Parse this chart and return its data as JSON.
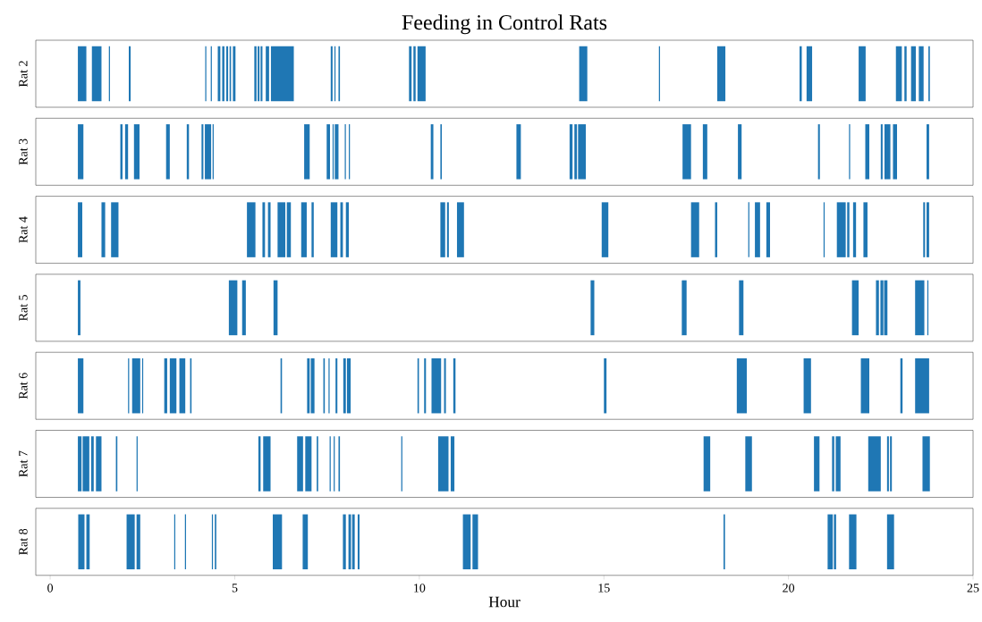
{
  "chart_data": {
    "type": "bar",
    "orientation": "horizontal",
    "title": "Feeding in Control Rats",
    "xlabel": "Hour",
    "categories": [
      "Rat 2",
      "Rat 3",
      "Rat 4",
      "Rat 5",
      "Rat 6",
      "Rat 7",
      "Rat 8"
    ],
    "xlim": [
      -0.39,
      25
    ],
    "xticks": [
      0,
      5,
      10,
      15,
      20,
      25
    ],
    "series": [
      {
        "color": "#1f77b4",
        "base": [
          0.75,
          0.75,
          0.75,
          0.75,
          0.75,
          0.75,
          0.76
        ],
        "values": [
          0.23,
          0.15,
          0.12,
          0.07,
          0.15,
          0.1,
          0.17
        ]
      },
      {
        "color": "#1f77b4",
        "base": [
          1.13,
          1.9,
          1.39,
          4.84,
          2.11,
          0.88,
          0.98
        ],
        "values": [
          0.26,
          0.06,
          0.1,
          0.23,
          0.03,
          0.18,
          0.09
        ]
      },
      {
        "color": "#1f77b4",
        "base": [
          1.59,
          2.03,
          1.65,
          5.2,
          2.22,
          1.11,
          2.07
        ],
        "values": [
          0.03,
          0.08,
          0.2,
          0.1,
          0.22,
          0.07,
          0.22
        ]
      },
      {
        "color": "#1f77b4",
        "base": [
          2.13,
          2.27,
          5.33,
          6.05,
          2.49,
          1.24,
          2.34
        ],
        "values": [
          0.05,
          0.15,
          0.23,
          0.11,
          0.03,
          0.15,
          0.1
        ]
      },
      {
        "color": "#1f77b4",
        "base": [
          4.2,
          3.14,
          5.75,
          14.64,
          3.09,
          1.78,
          3.36
        ],
        "values": [
          0.03,
          0.1,
          0.07,
          0.1,
          0.08,
          0.04,
          0.03
        ]
      },
      {
        "color": "#1f77b4",
        "base": [
          4.35,
          3.7,
          5.9,
          17.11,
          3.24,
          2.34,
          3.65
        ],
        "values": [
          0.03,
          0.06,
          0.07,
          0.13,
          0.18,
          0.03,
          0.03
        ]
      },
      {
        "color": "#1f77b4",
        "base": [
          4.54,
          4.1,
          6.16,
          18.66,
          3.5,
          5.64,
          4.38
        ],
        "values": [
          0.07,
          0.05,
          0.21,
          0.12,
          0.16,
          0.06,
          0.03
        ]
      },
      {
        "color": "#1f77b4",
        "base": [
          4.66,
          4.19,
          6.41,
          21.72,
          3.79,
          5.77,
          4.46
        ],
        "values": [
          0.06,
          0.17,
          0.11,
          0.18,
          0.04,
          0.2,
          0.04
        ]
      },
      {
        "color": "#1f77b4",
        "base": [
          4.77,
          4.4,
          6.8,
          22.37,
          6.24,
          6.69,
          6.03
        ],
        "values": [
          0.05,
          0.03,
          0.15,
          0.08,
          0.04,
          0.16,
          0.25
        ]
      },
      {
        "color": "#1f77b4",
        "base": [
          4.86,
          6.88,
          7.08,
          22.49,
          6.96,
          6.91,
          6.84
        ],
        "values": [
          0.04,
          0.15,
          0.06,
          0.08,
          0.07,
          0.17,
          0.14
        ]
      },
      {
        "color": "#1f77b4",
        "base": [
          4.95,
          7.49,
          7.6,
          22.59,
          7.06,
          7.22,
          7.93
        ],
        "values": [
          0.07,
          0.09,
          0.18,
          0.09,
          0.1,
          0.04,
          0.08
        ]
      },
      {
        "color": "#1f77b4",
        "base": [
          5.53,
          7.65,
          7.86,
          23.43,
          7.4,
          7.57,
          8.08
        ],
        "values": [
          0.06,
          0.03,
          0.07,
          0.25,
          0.04,
          0.03,
          0.07
        ]
      },
      {
        "color": "#1f77b4",
        "base": [
          5.62,
          7.71,
          8.01,
          23.76,
          7.54,
          7.68,
          8.18
        ],
        "values": [
          0.05,
          0.1,
          0.08,
          0.03,
          0.03,
          0.03,
          0.07
        ]
      },
      {
        "color": "#1f77b4",
        "base": [
          5.7,
          7.98,
          10.57,
          null,
          7.73,
          7.81,
          8.33
        ],
        "values": [
          0.05,
          0.03,
          0.13,
          null,
          0.05,
          0.04,
          0.05
        ]
      },
      {
        "color": "#1f77b4",
        "base": [
          5.84,
          8.09,
          10.75,
          null,
          7.94,
          9.51,
          11.18
        ],
        "values": [
          0.09,
          0.03,
          0.05,
          null,
          0.07,
          0.03,
          0.21
        ]
      },
      {
        "color": "#1f77b4",
        "base": [
          5.98,
          10.31,
          11.02,
          null,
          8.04,
          10.51,
          11.44
        ],
        "values": [
          0.62,
          0.07,
          0.19,
          null,
          0.1,
          0.28,
          0.15
        ]
      },
      {
        "color": "#1f77b4",
        "base": [
          7.6,
          10.57,
          14.94,
          null,
          9.95,
          10.85,
          18.24
        ],
        "values": [
          0.05,
          0.04,
          0.18,
          null,
          0.04,
          0.1,
          0.04
        ]
      },
      {
        "color": "#1f77b4",
        "base": [
          7.7,
          12.63,
          17.36,
          null,
          10.13,
          17.7,
          21.06
        ],
        "values": [
          0.03,
          0.12,
          0.22,
          null,
          0.05,
          0.18,
          0.14
        ]
      },
      {
        "color": "#1f77b4",
        "base": [
          7.81,
          14.07,
          18.01,
          null,
          10.33,
          18.83,
          21.23
        ],
        "values": [
          0.04,
          0.08,
          0.06,
          null,
          0.26,
          0.18,
          0.06
        ]
      },
      {
        "color": "#1f77b4",
        "base": [
          9.72,
          14.2,
          18.91,
          null,
          10.67,
          20.69,
          21.64
        ],
        "values": [
          0.07,
          0.07,
          0.03,
          null,
          0.05,
          0.15,
          0.2
        ]
      },
      {
        "color": "#1f77b4",
        "base": [
          9.84,
          14.3,
          19.09,
          null,
          10.92,
          21.18,
          22.67
        ],
        "values": [
          0.06,
          0.21,
          0.14,
          null,
          0.06,
          0.06,
          0.19
        ]
      },
      {
        "color": "#1f77b4",
        "base": [
          9.95,
          17.13,
          19.4,
          null,
          15.0,
          21.28,
          null
        ],
        "values": [
          0.22,
          0.23,
          0.1,
          null,
          0.07,
          0.13,
          null
        ]
      },
      {
        "color": "#1f77b4",
        "base": [
          14.33,
          17.68,
          20.95,
          null,
          18.6,
          22.16,
          null
        ],
        "values": [
          0.22,
          0.12,
          0.03,
          null,
          0.27,
          0.34,
          null
        ]
      },
      {
        "color": "#1f77b4",
        "base": [
          16.49,
          18.63,
          21.31,
          null,
          20.41,
          22.67,
          null
        ],
        "values": [
          0.03,
          0.1,
          0.24,
          null,
          0.2,
          0.05,
          null
        ]
      },
      {
        "color": "#1f77b4",
        "base": [
          18.07,
          20.8,
          21.59,
          null,
          21.96,
          22.75,
          null
        ],
        "values": [
          0.22,
          0.05,
          0.06,
          null,
          0.23,
          0.05,
          null
        ]
      },
      {
        "color": "#1f77b4",
        "base": [
          20.3,
          21.64,
          21.75,
          null,
          23.03,
          23.63,
          null
        ],
        "values": [
          0.06,
          0.03,
          0.08,
          null,
          0.06,
          0.2,
          null
        ]
      },
      {
        "color": "#1f77b4",
        "base": [
          20.49,
          22.08,
          22.03,
          null,
          23.43,
          null,
          null
        ],
        "values": [
          0.15,
          0.11,
          0.11,
          null,
          0.38,
          null,
          null
        ]
      },
      {
        "color": "#1f77b4",
        "base": [
          21.9,
          22.5,
          23.65,
          null,
          null,
          null,
          null
        ],
        "values": [
          0.19,
          0.05,
          0.05,
          null,
          null,
          null,
          null
        ]
      },
      {
        "color": "#1f77b4",
        "base": [
          22.91,
          22.6,
          23.74,
          null,
          null,
          null,
          null
        ],
        "values": [
          0.16,
          0.16,
          0.07,
          null,
          null,
          null,
          null
        ]
      },
      {
        "color": "#1f77b4",
        "base": [
          23.14,
          22.83,
          null,
          null,
          null,
          null,
          null
        ],
        "values": [
          0.06,
          0.11,
          null,
          null,
          null,
          null,
          null
        ]
      },
      {
        "color": "#1f77b4",
        "base": [
          23.32,
          23.74,
          null,
          null,
          null,
          null,
          null
        ],
        "values": [
          0.13,
          0.07,
          null,
          null,
          null,
          null,
          null
        ]
      },
      {
        "color": "#1f77b4",
        "base": [
          23.53,
          null,
          null,
          null,
          null,
          null,
          null
        ],
        "values": [
          0.13,
          null,
          null,
          null,
          null,
          null,
          null
        ]
      },
      {
        "color": "#1f77b4",
        "base": [
          23.79,
          null,
          null,
          null,
          null,
          null,
          null
        ],
        "values": [
          0.04,
          null,
          null,
          null,
          null,
          null,
          null
        ]
      }
    ]
  }
}
